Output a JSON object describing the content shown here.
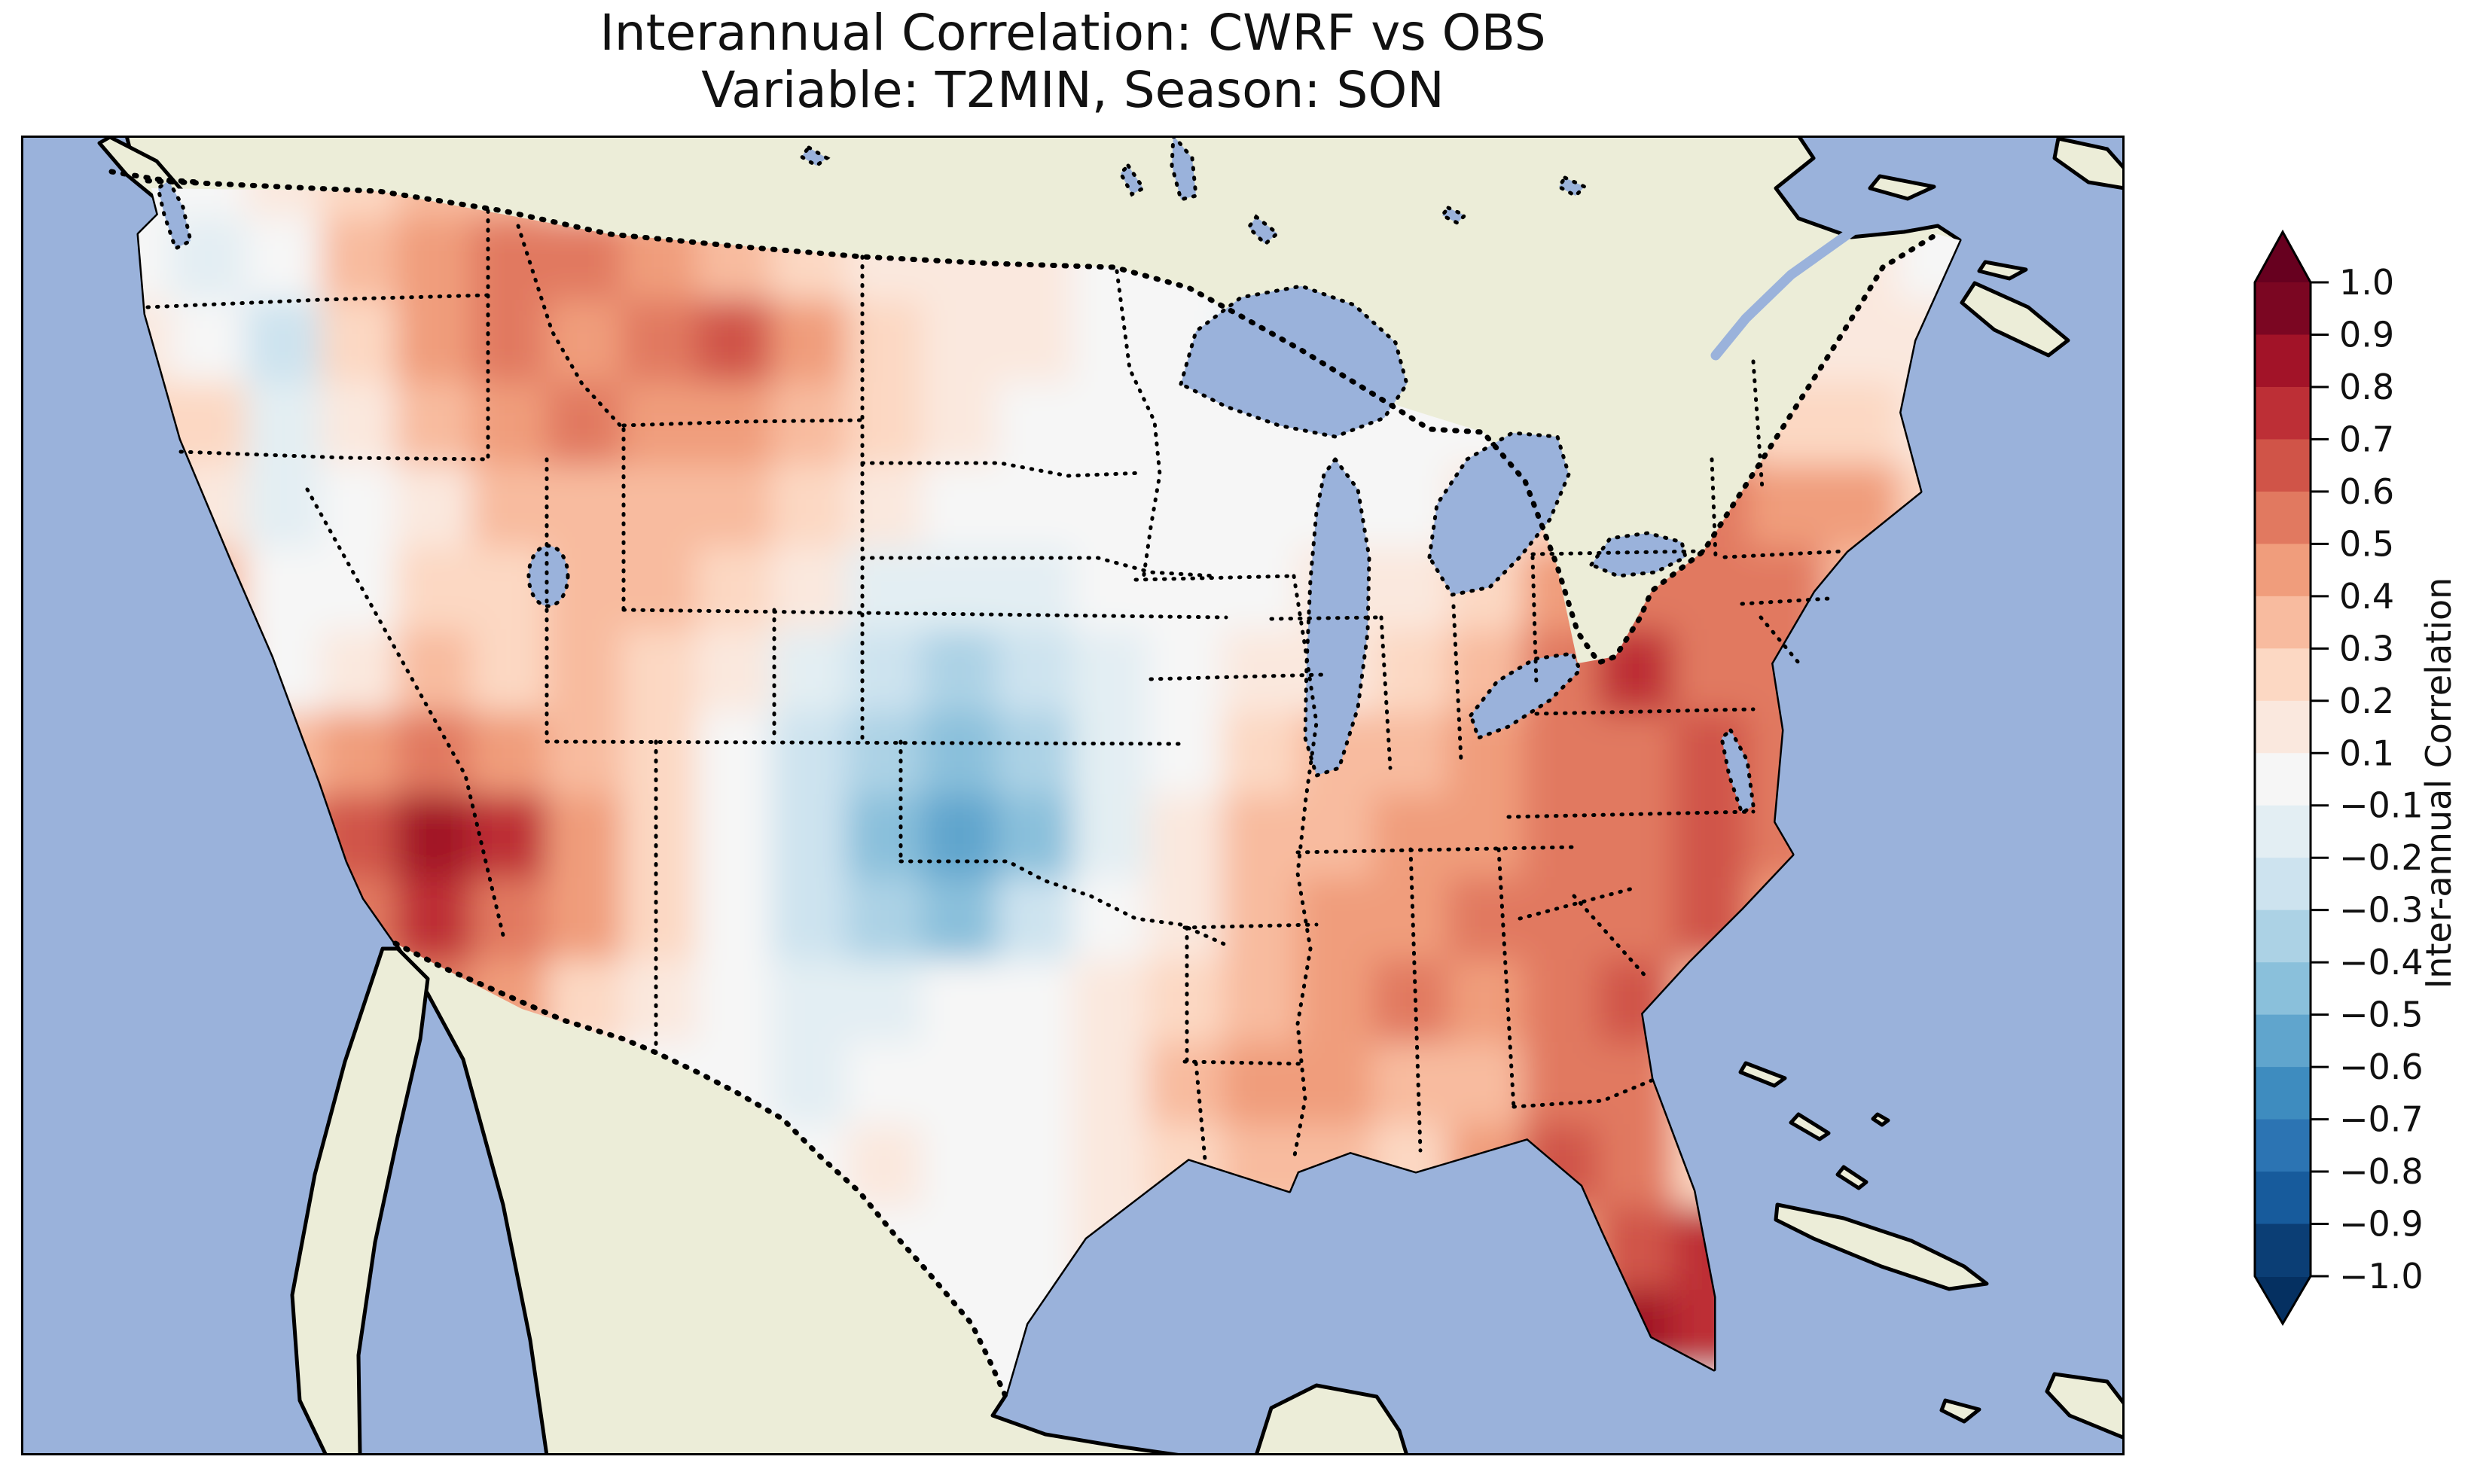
{
  "title": {
    "line1": "Interannual Correlation: CWRF vs OBS",
    "line2": "Variable: T2MIN, Season: SON"
  },
  "colorbar": {
    "label": "Inter-annual Correlation",
    "tick_labels": [
      "1.0",
      "0.9",
      "0.8",
      "0.7",
      "0.6",
      "0.5",
      "0.4",
      "0.3",
      "0.2",
      "0.1",
      "−0.1",
      "−0.2",
      "−0.3",
      "−0.4",
      "−0.5",
      "−0.6",
      "−0.7",
      "−0.8",
      "−0.9",
      "−1.0"
    ]
  },
  "map": {
    "ocean": "#9ab2db",
    "land": "#ecedd8",
    "coastline": "#000000"
  },
  "chart_data": {
    "type": "heatmap",
    "title": "Interannual Correlation: CWRF vs OBS",
    "subtitle": "Variable: T2MIN, Season: SON",
    "comparison": "CWRF vs OBS",
    "variable": "T2MIN",
    "season": "SON",
    "value_name": "Inter-annual Correlation",
    "value_range": [
      -1.0,
      1.0
    ],
    "levels": [
      -1.0,
      -0.9,
      -0.8,
      -0.7,
      -0.6,
      -0.5,
      -0.4,
      -0.3,
      -0.2,
      -0.1,
      0.1,
      0.2,
      0.3,
      0.4,
      0.5,
      0.6,
      0.7,
      0.8,
      0.9,
      1.0
    ],
    "band_colors": [
      "#0b3e75",
      "#175b9c",
      "#2c74b3",
      "#3e8cbf",
      "#60a5cd",
      "#8ac0db",
      "#acd2e5",
      "#cde3ef",
      "#e3eef3",
      "#f6f6f6",
      "#fae8de",
      "#fcd8c3",
      "#f8bb9f",
      "#f09d7c",
      "#e17960",
      "#d05448",
      "#bd2f36",
      "#a21328",
      "#7b0622"
    ],
    "extend_colors": {
      "over": "#67001f",
      "under": "#053061"
    },
    "grid": {
      "ncols": 28,
      "nrows": 16,
      "values": [
        [
          0,
          0,
          0,
          0.1,
          0.2,
          0.3,
          0.3,
          0.2,
          0.2,
          0.1,
          0.1,
          0.1,
          0,
          0,
          0,
          0,
          0,
          0,
          0,
          0.1,
          0.1,
          0.1,
          0.1,
          0.2,
          0.1,
          0,
          0,
          0
        ],
        [
          0,
          -0.1,
          -0.2,
          0,
          0.3,
          0.4,
          0.5,
          0.5,
          0.4,
          0.3,
          0.2,
          0.1,
          0.1,
          0.1,
          0,
          0,
          -0.1,
          -0.1,
          0,
          0,
          0.1,
          0.1,
          0.1,
          0.2,
          0.1,
          0,
          0,
          0
        ],
        [
          0.1,
          0.1,
          -0.1,
          -0.3,
          0.2,
          0.45,
          0.5,
          0.45,
          0.55,
          0.65,
          0.45,
          0.25,
          0.15,
          0.1,
          0.05,
          0,
          -0.15,
          -0.1,
          0.05,
          0,
          0.1,
          0.25,
          0.15,
          0.1,
          0.15,
          0.1,
          0,
          0
        ],
        [
          0.2,
          0.25,
          0.2,
          -0.15,
          0.1,
          0.35,
          0.45,
          0.5,
          0.45,
          0.4,
          0.3,
          0.2,
          0.1,
          0.05,
          0,
          0.05,
          -0.1,
          0,
          -0.1,
          0.05,
          0.2,
          0.3,
          0.35,
          0.2,
          0.25,
          0.1,
          0,
          0
        ],
        [
          0.3,
          0.3,
          0.15,
          -0.2,
          -0.1,
          0.15,
          0.3,
          0.35,
          0.3,
          0.35,
          0.25,
          0.1,
          -0.1,
          -0.1,
          -0.05,
          0,
          0.05,
          0,
          0.05,
          0.1,
          0.2,
          0.45,
          0.5,
          0.45,
          0.4,
          0.2,
          0,
          0
        ],
        [
          0.4,
          0.45,
          0.35,
          -0.1,
          0.05,
          0.2,
          0.25,
          0.3,
          0.3,
          0.25,
          0.1,
          -0.15,
          -0.2,
          -0.15,
          -0.1,
          0,
          0.05,
          0.1,
          0.15,
          0.25,
          0.4,
          0.55,
          0.5,
          0.5,
          0.3,
          0.2,
          0,
          0
        ],
        [
          0.45,
          0.5,
          0.4,
          0,
          0.1,
          0.3,
          0.25,
          0.3,
          0.2,
          0.1,
          -0.15,
          -0.25,
          -0.35,
          -0.3,
          -0.15,
          0,
          0.1,
          0.1,
          0.2,
          0.3,
          0.5,
          0.7,
          0.55,
          0.55,
          0.3,
          0.2,
          0,
          0
        ],
        [
          0.4,
          0.5,
          0.55,
          0.35,
          0.4,
          0.5,
          0.45,
          0.3,
          0.2,
          0.05,
          -0.25,
          -0.4,
          -0.45,
          -0.35,
          -0.15,
          0.05,
          0.2,
          0.3,
          0.35,
          0.4,
          0.5,
          0.55,
          0.6,
          0.5,
          0.3,
          0,
          0,
          0
        ],
        [
          0.2,
          0.45,
          0.6,
          0.5,
          0.6,
          0.85,
          0.75,
          0.45,
          0.25,
          -0.1,
          -0.3,
          -0.45,
          -0.55,
          -0.45,
          -0.2,
          0.1,
          0.3,
          0.35,
          0.4,
          0.45,
          0.5,
          0.55,
          0.6,
          0.55,
          0.2,
          0,
          0,
          0
        ],
        [
          0.1,
          0.2,
          0.4,
          0.45,
          0.5,
          0.7,
          0.55,
          0.4,
          0.2,
          -0.05,
          -0.25,
          -0.4,
          -0.45,
          -0.3,
          -0.1,
          0.15,
          0.3,
          0.4,
          0.45,
          0.5,
          0.55,
          0.5,
          0.6,
          0.4,
          0,
          0,
          0,
          0
        ],
        [
          0.1,
          0.1,
          0.2,
          0.4,
          0.45,
          0.5,
          0.4,
          0.25,
          0.1,
          -0.1,
          -0.2,
          -0.2,
          -0.1,
          0.05,
          0.1,
          0.2,
          0.35,
          0.45,
          0.5,
          0.45,
          0.55,
          0.6,
          0.3,
          0,
          0,
          0,
          0,
          0
        ],
        [
          0,
          0,
          0.1,
          0.2,
          0.3,
          0.3,
          0.2,
          0.15,
          0.05,
          -0.1,
          -0.15,
          -0.05,
          0.05,
          0,
          0.15,
          0.3,
          0.45,
          0.4,
          0.3,
          0.3,
          0.55,
          0.5,
          0.2,
          0,
          0,
          0,
          0,
          0
        ],
        [
          0,
          0,
          0,
          0.1,
          0.2,
          0.2,
          0.1,
          0,
          -0.1,
          -0.05,
          0.05,
          0.1,
          -0.05,
          0.05,
          0.1,
          0.2,
          0.3,
          0.3,
          0.2,
          0.4,
          0.6,
          0.55,
          0.2,
          0,
          0,
          0,
          0,
          0
        ],
        [
          0,
          0,
          0,
          0,
          0.1,
          0.1,
          0.05,
          -0.05,
          -0.1,
          0,
          0.05,
          0.05,
          0,
          0,
          0.1,
          0.1,
          0.2,
          0.2,
          0.2,
          0.3,
          0.4,
          0.65,
          0.7,
          0.3,
          0,
          0,
          0,
          0
        ],
        [
          0,
          0,
          0,
          0,
          0,
          0,
          0,
          0,
          0,
          0,
          0,
          0,
          0,
          0,
          0,
          0,
          0,
          0,
          0,
          0,
          0.3,
          0.8,
          0.75,
          0.3,
          0,
          0,
          0,
          0
        ],
        [
          0,
          0,
          0,
          0,
          0,
          0,
          0,
          0,
          0,
          0,
          0,
          0,
          0,
          0,
          0,
          0,
          0,
          0,
          0,
          0,
          0,
          0,
          0,
          0,
          0,
          0,
          0,
          0
        ]
      ]
    }
  }
}
